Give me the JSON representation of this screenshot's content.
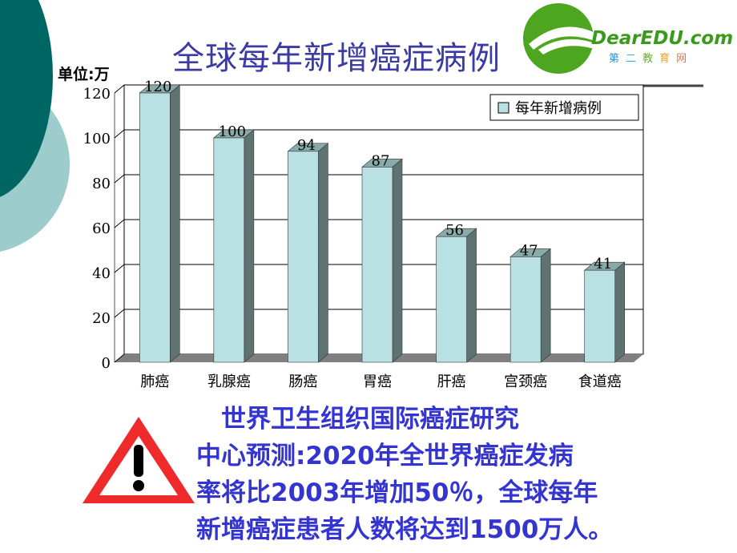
{
  "slide": {
    "title": "全球每年新增癌症病例",
    "unit_label": "单位:万",
    "logo": {
      "name": "DearEDU.com",
      "subtitle": [
        "第",
        "二",
        "教",
        "育",
        "网"
      ],
      "subtitle_colors": [
        "#2e8fd8",
        "#26b8d8",
        "#6ab030",
        "#f0a020",
        "#e87040"
      ]
    },
    "note_lines": [
      "　世界卫生组织国际癌症研究",
      "中心预测:2020年全世界癌症发病",
      "率将比2003年增加50％，全球每年",
      "新增癌症患者人数将达到1500万人。"
    ],
    "colors": {
      "title": "#3b3ba3",
      "note": "#3434d0",
      "bar_front": "#b9e0e3",
      "bar_side": "#5f7272",
      "warning": "#ee2a2a",
      "circle_dark": "#006663",
      "circle_light": "#9ccccc"
    }
  },
  "chart_data": {
    "type": "bar",
    "categories": [
      "肺癌",
      "乳腺癌",
      "肠癌",
      "胃癌",
      "肝癌",
      "宫颈癌",
      "食道癌"
    ],
    "series": [
      {
        "name": "每年新增病例",
        "values": [
          120,
          100,
          94,
          87,
          56,
          47,
          41
        ]
      }
    ],
    "ylim": [
      0,
      120
    ],
    "yticks": [
      0,
      20,
      40,
      60,
      80,
      100,
      120
    ],
    "grid": true,
    "legend": "top-right",
    "style": "3d"
  }
}
